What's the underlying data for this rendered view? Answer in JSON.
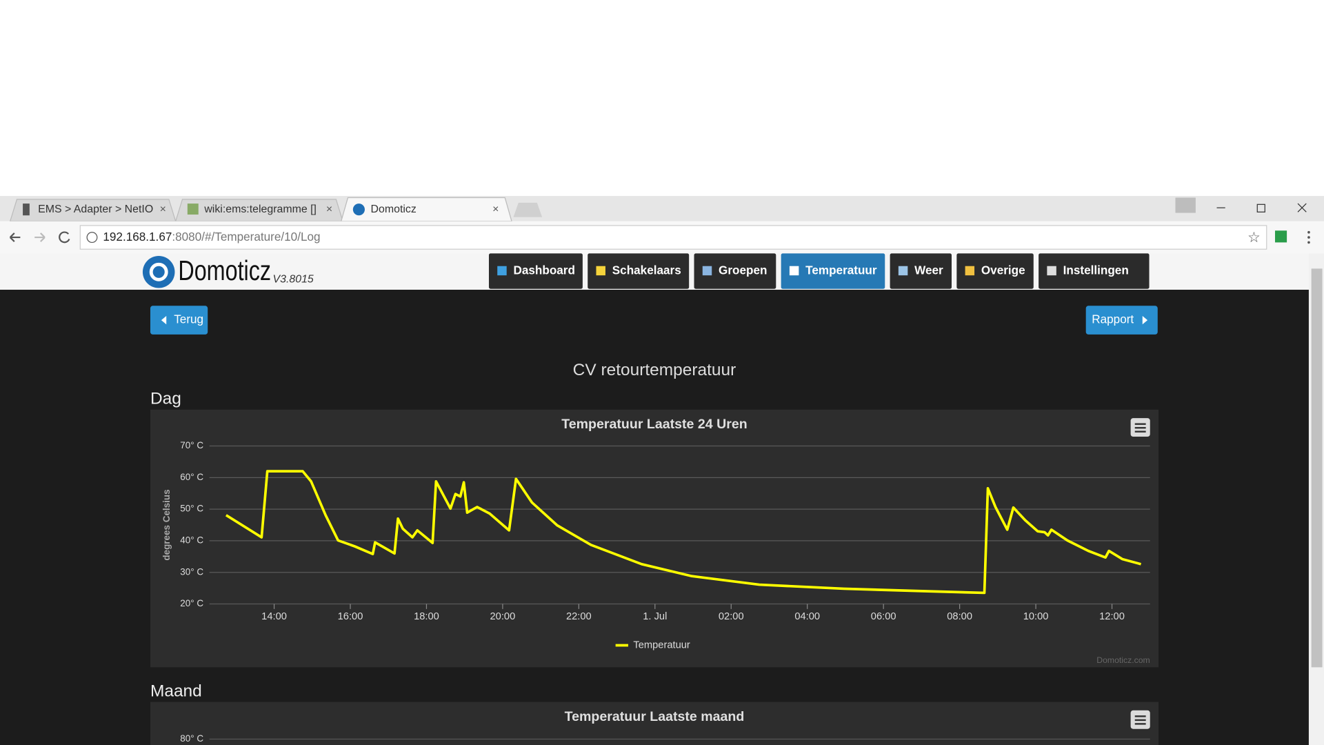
{
  "browser": {
    "tabs": [
      "EMS > Adapter > NetIO",
      "wiki:ems:telegramme []",
      "Domoticz"
    ],
    "url_host": "192.168.1.67",
    "url_path": ":8080/#/Temperature/10/Log"
  },
  "app": {
    "logo": "Domoticz",
    "version": "V3.8015",
    "nav": [
      "Dashboard",
      "Schakelaars",
      "Groepen",
      "Temperatuur",
      "Weer",
      "Overige",
      "Instellingen"
    ],
    "active_nav": 3,
    "back_button": "Terug",
    "report_button": "Rapport",
    "heading": "CV retourtemperatuur",
    "sections": [
      "Dag",
      "Maand"
    ]
  },
  "chart_data": [
    {
      "type": "line",
      "title": "Temperatuur Laatste 24 Uren",
      "y_label": "degrees Celsius",
      "credit": "Domoticz.com",
      "grid": true,
      "x": [
        12.74,
        13.67,
        13.82,
        14.75,
        14.97,
        15.35,
        15.68,
        16.12,
        16.59,
        16.65,
        17.16,
        17.25,
        17.38,
        17.63,
        17.76,
        18.16,
        18.25,
        18.63,
        18.76,
        18.89,
        18.98,
        19.07,
        19.33,
        19.66,
        20.17,
        20.35,
        20.77,
        21.43,
        22.32,
        23.65,
        24.97,
        26.74,
        28.96,
        31.17,
        32.65,
        32.74,
        32.94,
        33.25,
        33.41,
        33.72,
        34.05,
        34.23,
        34.32,
        34.41,
        34.83,
        35.38,
        35.83,
        35.92,
        36.27,
        36.76
      ],
      "series": [
        {
          "name": "Temperatuur",
          "color": "#ffff00",
          "values": [
            48.1,
            41.1,
            62.0,
            62.0,
            58.8,
            48.1,
            40.1,
            38.2,
            35.8,
            39.5,
            36.0,
            47.0,
            43.8,
            41.1,
            43.3,
            39.3,
            58.8,
            50.2,
            54.8,
            54.0,
            58.5,
            48.9,
            50.7,
            48.6,
            43.3,
            59.6,
            52.1,
            44.9,
            38.7,
            32.6,
            28.8,
            26.1,
            24.8,
            24.0,
            23.5,
            56.6,
            50.7,
            43.5,
            50.5,
            46.5,
            43.0,
            42.7,
            41.7,
            43.5,
            40.1,
            36.8,
            34.7,
            36.8,
            34.2,
            32.6
          ]
        }
      ],
      "xlim": [
        12.3,
        37.0
      ],
      "xticks": [
        {
          "value": 14,
          "label": "14:00"
        },
        {
          "value": 16,
          "label": "16:00"
        },
        {
          "value": 18,
          "label": "18:00"
        },
        {
          "value": 20,
          "label": "20:00"
        },
        {
          "value": 22,
          "label": "22:00"
        },
        {
          "value": 24,
          "label": "1. Jul"
        },
        {
          "value": 26,
          "label": "02:00"
        },
        {
          "value": 28,
          "label": "04:00"
        },
        {
          "value": 30,
          "label": "06:00"
        },
        {
          "value": 32,
          "label": "08:00"
        },
        {
          "value": 34,
          "label": "10:00"
        },
        {
          "value": 36,
          "label": "12:00"
        }
      ],
      "ylim": [
        20,
        70
      ],
      "yticks": [
        {
          "value": 20,
          "label": "20° C"
        },
        {
          "value": 30,
          "label": "30° C"
        },
        {
          "value": 40,
          "label": "40° C"
        },
        {
          "value": 50,
          "label": "50° C"
        },
        {
          "value": 60,
          "label": "60° C"
        },
        {
          "value": 70,
          "label": "70° C"
        }
      ]
    },
    {
      "type": "line",
      "title": "Temperatuur Laatste maand",
      "grid": true,
      "yticks": [
        {
          "value": 80,
          "label": "80° C"
        }
      ]
    }
  ]
}
